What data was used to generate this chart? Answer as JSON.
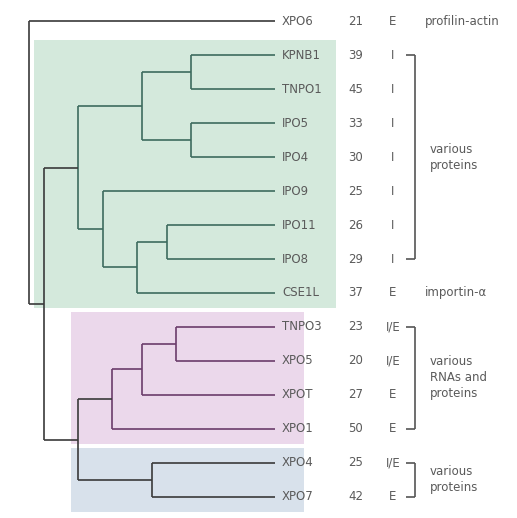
{
  "leaves": [
    "XPO6",
    "KPNB1",
    "TNPO1",
    "IPO5",
    "IPO4",
    "IPO9",
    "IPO11",
    "IPO8",
    "CSE1L",
    "TNPO3",
    "XPO5",
    "XPOT",
    "XPO1",
    "XPO4",
    "XPO7"
  ],
  "numbers": [
    21,
    39,
    45,
    33,
    30,
    25,
    26,
    29,
    37,
    23,
    20,
    27,
    50,
    25,
    42
  ],
  "letters": [
    "E",
    "I",
    "I",
    "I",
    "I",
    "I",
    "I",
    "I",
    "E",
    "I/E",
    "I/E",
    "E",
    "E",
    "I/E",
    "E"
  ],
  "bg_green_color": "#b2d8c0",
  "bg_pink_color": "#d8b2d8",
  "bg_blue_color": "#b2c4d8",
  "line_color_green": "#3d6b5e",
  "line_color_pink": "#6b3d6b",
  "line_color_default": "#3a3a3a",
  "text_color": "#5a5a5a",
  "figsize": [
    5.17,
    5.18
  ],
  "dpi": 100
}
